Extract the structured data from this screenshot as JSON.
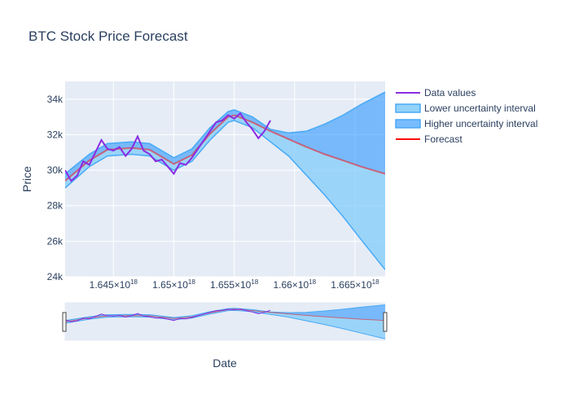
{
  "chart_data": {
    "type": "line",
    "title": "BTC Stock Price Forecast",
    "xlabel": "Date",
    "ylabel": "Price",
    "xlim": [
      1.641e+18,
      1.6675e+18
    ],
    "ylim": [
      24000,
      35000
    ],
    "x_ticks": [
      {
        "value": 1.645e+18,
        "base": "1.645×10",
        "exp": "18"
      },
      {
        "value": 1.65e+18,
        "base": "1.65×10",
        "exp": "18"
      },
      {
        "value": 1.655e+18,
        "base": "1.655×10",
        "exp": "18"
      },
      {
        "value": 1.66e+18,
        "base": "1.66×10",
        "exp": "18"
      },
      {
        "value": 1.665e+18,
        "base": "1.665×10",
        "exp": "18"
      }
    ],
    "y_ticks": [
      {
        "value": 24000,
        "label": "24k"
      },
      {
        "value": 26000,
        "label": "26k"
      },
      {
        "value": 28000,
        "label": "28k"
      },
      {
        "value": 30000,
        "label": "30k"
      },
      {
        "value": 32000,
        "label": "32k"
      },
      {
        "value": 34000,
        "label": "34k"
      }
    ],
    "grid": true,
    "legend_position": "right",
    "rangeslider": true,
    "series": [
      {
        "name": "Data values",
        "color": "#8a2be2",
        "x": [
          1.641e+18,
          1.6415e+18,
          1.642e+18,
          1.6425e+18,
          1.643e+18,
          1.6435e+18,
          1.644e+18,
          1.6445e+18,
          1.645e+18,
          1.6455e+18,
          1.646e+18,
          1.6465e+18,
          1.647e+18,
          1.6475e+18,
          1.648e+18,
          1.6485e+18,
          1.649e+18,
          1.6495e+18,
          1.65e+18,
          1.6505e+18,
          1.651e+18,
          1.6515e+18,
          1.652e+18,
          1.6525e+18,
          1.653e+18,
          1.6535e+18,
          1.654e+18,
          1.6545e+18,
          1.655e+18,
          1.6555e+18,
          1.656e+18,
          1.6565e+18,
          1.657e+18,
          1.6575e+18,
          1.658e+18
        ],
        "y": [
          30000,
          29400,
          29700,
          30500,
          30300,
          31000,
          31700,
          31200,
          31100,
          31300,
          30800,
          31200,
          31900,
          31100,
          30900,
          30500,
          30600,
          30200,
          29800,
          30400,
          30300,
          30700,
          31200,
          31700,
          32200,
          32700,
          32800,
          33100,
          32900,
          33200,
          32700,
          32300,
          31800,
          32200,
          32800
        ]
      },
      {
        "name": "Lower uncertainty interval",
        "color": "#48aaf5",
        "fill": "rgba(135,206,250,0.8)",
        "x": [
          1.641e+18,
          1.643e+18,
          1.6445e+18,
          1.6465e+18,
          1.648e+18,
          1.65e+18,
          1.6515e+18,
          1.653e+18,
          1.6545e+18,
          1.655e+18,
          1.6565e+18,
          1.658e+18,
          1.6595e+18,
          1.661e+18,
          1.6625e+18,
          1.664e+18,
          1.6655e+18,
          1.6675e+18
        ],
        "y": [
          29000,
          30200,
          30800,
          30900,
          30800,
          30000,
          30500,
          31700,
          32700,
          32800,
          32400,
          31600,
          30800,
          29700,
          28600,
          27400,
          26100,
          24400
        ]
      },
      {
        "name": "Higher uncertainty interval",
        "color": "#48aaf5",
        "fill": "rgba(30,144,255,0.55)",
        "x": [
          1.641e+18,
          1.643e+18,
          1.6445e+18,
          1.6465e+18,
          1.648e+18,
          1.65e+18,
          1.6515e+18,
          1.653e+18,
          1.6545e+18,
          1.655e+18,
          1.6565e+18,
          1.658e+18,
          1.6595e+18,
          1.661e+18,
          1.6625e+18,
          1.664e+18,
          1.6655e+18,
          1.6675e+18
        ],
        "y": [
          29800,
          30900,
          31500,
          31600,
          31500,
          30700,
          31200,
          32400,
          33300,
          33400,
          33000,
          32300,
          32100,
          32200,
          32600,
          33100,
          33700,
          34400
        ]
      },
      {
        "name": "Forecast",
        "color": "#ff0000",
        "x": [
          1.641e+18,
          1.643e+18,
          1.6445e+18,
          1.6465e+18,
          1.648e+18,
          1.65e+18,
          1.6515e+18,
          1.653e+18,
          1.6545e+18,
          1.655e+18,
          1.6565e+18,
          1.658e+18,
          1.6595e+18,
          1.661e+18,
          1.6625e+18,
          1.664e+18,
          1.6655e+18,
          1.6675e+18
        ],
        "y": [
          29400,
          30550,
          31150,
          31250,
          31150,
          30350,
          30850,
          32050,
          33000,
          33100,
          32700,
          32200,
          31750,
          31300,
          30900,
          30550,
          30200,
          29800
        ]
      }
    ]
  }
}
